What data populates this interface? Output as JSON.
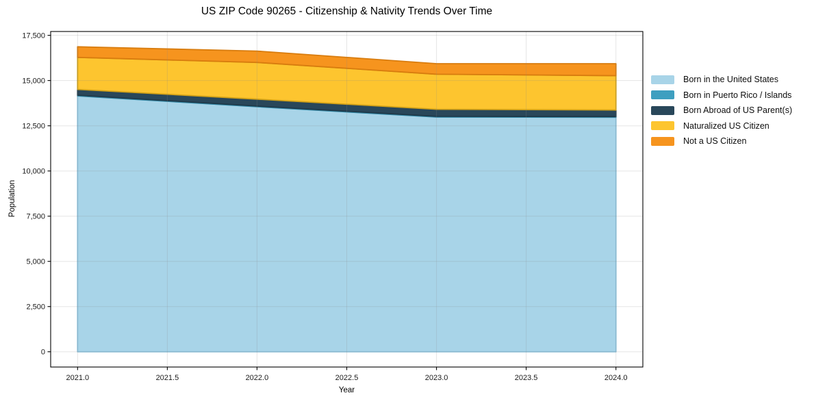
{
  "title": "US ZIP Code 90265 - Citizenship & Nativity Trends Over Time",
  "chart_data": {
    "type": "area",
    "stacked": true,
    "title": "US ZIP Code 90265 - Citizenship & Nativity Trends Over Time",
    "xlabel": "Year",
    "ylabel": "Population",
    "x": [
      2021,
      2022,
      2023,
      2024
    ],
    "series": [
      {
        "name": "Born in the United States",
        "color": "#a8d4e8",
        "edge_color": "#8cc2dd",
        "values": [
          14150,
          13550,
          12980,
          12970
        ]
      },
      {
        "name": "Born in Puerto Rico / Islands",
        "color": "#3e9fc0",
        "edge_color": "#3389a7",
        "values": [
          40,
          40,
          40,
          40
        ]
      },
      {
        "name": "Born Abroad of US Parent(s)",
        "color": "#29475a",
        "edge_color": "#203a4a",
        "values": [
          320,
          380,
          390,
          360
        ]
      },
      {
        "name": "Naturalized US Citizen",
        "color": "#fdc52f",
        "edge_color": "#d3a217",
        "values": [
          1770,
          2030,
          1940,
          1900
        ]
      },
      {
        "name": "Not a US Citizen",
        "color": "#f6941e",
        "edge_color": "#d87c0e",
        "values": [
          590,
          630,
          585,
          665
        ]
      }
    ],
    "xticks": [
      2021.0,
      2021.5,
      2022.0,
      2022.5,
      2023.0,
      2023.5,
      2024.0
    ],
    "xtick_labels": [
      "2021.0",
      "2021.5",
      "2022.0",
      "2022.5",
      "2023.0",
      "2023.5",
      "2024.0"
    ],
    "yticks": [
      0,
      2500,
      5000,
      7500,
      10000,
      12500,
      15000,
      17500
    ],
    "ytick_labels": [
      "0",
      "2,500",
      "5,000",
      "7,500",
      "10,000",
      "12,500",
      "15,000",
      "17,500"
    ],
    "xlim": [
      2020.85,
      2024.15
    ],
    "ylim": [
      -843,
      17713
    ],
    "grid": true,
    "grid_color": "#8a8a8a",
    "grid_opacity": 0.22,
    "spine_color": "#000000",
    "tick_label_color": "#1a1a1a",
    "legend_position": "right-outside"
  }
}
